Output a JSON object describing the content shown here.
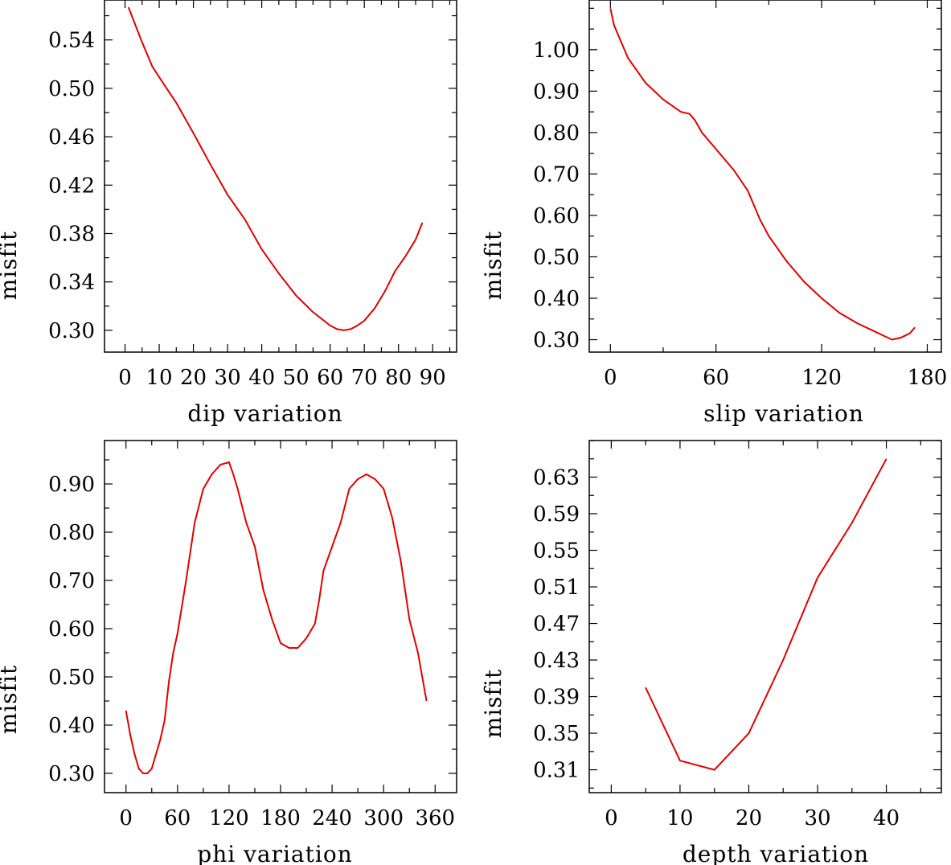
{
  "chart_data": [
    {
      "type": "line",
      "xlabel": "dip    variation",
      "ylabel": "misfit",
      "xlim": [
        -6,
        97
      ],
      "ylim": [
        0.282,
        0.573
      ],
      "xticks": [
        0,
        10,
        20,
        30,
        40,
        50,
        60,
        70,
        80,
        90
      ],
      "yticks": [
        0.3,
        0.34,
        0.38,
        0.42,
        0.46,
        0.5,
        0.54
      ],
      "xtick_labels": [
        "0",
        "10",
        "20",
        "30",
        "40",
        "50",
        "60",
        "70",
        "80",
        "90"
      ],
      "ytick_labels": [
        "0.30",
        "0.34",
        "0.38",
        "0.42",
        "0.46",
        "0.50",
        "0.54"
      ],
      "grid": false,
      "color": "#e00000",
      "x": [
        1,
        5,
        8,
        11,
        15,
        20,
        25,
        30,
        35,
        40,
        45,
        50,
        55,
        60,
        62,
        64,
        66,
        68,
        70,
        73,
        76,
        79,
        82,
        85,
        87
      ],
      "y": [
        0.567,
        0.538,
        0.518,
        0.505,
        0.488,
        0.463,
        0.437,
        0.412,
        0.392,
        0.367,
        0.347,
        0.329,
        0.315,
        0.304,
        0.301,
        0.3,
        0.301,
        0.304,
        0.308,
        0.318,
        0.332,
        0.349,
        0.361,
        0.375,
        0.389
      ]
    },
    {
      "type": "line",
      "xlabel": "slip   variation",
      "ylabel": "misfit",
      "xlim": [
        -12,
        188
      ],
      "ylim": [
        0.27,
        1.12
      ],
      "xticks": [
        0,
        60,
        120,
        180
      ],
      "yticks": [
        0.3,
        0.4,
        0.5,
        0.6,
        0.7,
        0.8,
        0.9,
        1.0
      ],
      "xtick_labels": [
        "0",
        "60",
        "120",
        "180"
      ],
      "ytick_labels": [
        "0.30",
        "0.40",
        "0.50",
        "0.60",
        "0.70",
        "0.80",
        "0.90",
        "1.00"
      ],
      "grid": false,
      "color": "#e00000",
      "x": [
        0,
        2,
        5,
        10,
        15,
        20,
        30,
        40,
        45,
        48,
        52,
        60,
        70,
        78,
        85,
        90,
        100,
        110,
        120,
        130,
        140,
        150,
        155,
        160,
        165,
        170,
        173
      ],
      "y": [
        1.1,
        1.06,
        1.03,
        0.98,
        0.95,
        0.92,
        0.88,
        0.85,
        0.845,
        0.83,
        0.8,
        0.76,
        0.71,
        0.66,
        0.59,
        0.55,
        0.49,
        0.44,
        0.4,
        0.365,
        0.34,
        0.32,
        0.31,
        0.3,
        0.305,
        0.315,
        0.33
      ]
    },
    {
      "type": "line",
      "xlabel": "phi    variation",
      "ylabel": "misfit",
      "xlim": [
        -25,
        385
      ],
      "ylim": [
        0.26,
        0.99
      ],
      "xticks": [
        0,
        60,
        120,
        180,
        240,
        300,
        360
      ],
      "yticks": [
        0.3,
        0.4,
        0.5,
        0.6,
        0.7,
        0.8,
        0.9
      ],
      "xtick_labels": [
        "0",
        "60",
        "120",
        "180",
        "240",
        "300",
        "360"
      ],
      "ytick_labels": [
        "0.30",
        "0.40",
        "0.50",
        "0.60",
        "0.70",
        "0.80",
        "0.90"
      ],
      "grid": false,
      "color": "#e00000",
      "x": [
        0,
        5,
        10,
        15,
        20,
        25,
        30,
        35,
        40,
        45,
        50,
        55,
        60,
        70,
        80,
        90,
        100,
        110,
        120,
        125,
        130,
        140,
        150,
        160,
        170,
        180,
        190,
        200,
        210,
        220,
        225,
        230,
        240,
        250,
        260,
        270,
        280,
        290,
        300,
        310,
        320,
        330,
        340,
        350
      ],
      "y": [
        0.43,
        0.38,
        0.34,
        0.31,
        0.3,
        0.3,
        0.31,
        0.34,
        0.37,
        0.41,
        0.49,
        0.55,
        0.59,
        0.7,
        0.82,
        0.89,
        0.92,
        0.94,
        0.945,
        0.92,
        0.89,
        0.82,
        0.77,
        0.68,
        0.62,
        0.57,
        0.56,
        0.56,
        0.58,
        0.61,
        0.66,
        0.72,
        0.77,
        0.82,
        0.89,
        0.91,
        0.92,
        0.91,
        0.89,
        0.83,
        0.74,
        0.62,
        0.55,
        0.45
      ]
    },
    {
      "type": "line",
      "xlabel": "depth  variation",
      "ylabel": "misfit",
      "xlim": [
        -3.2,
        48
      ],
      "ylim": [
        0.285,
        0.67
      ],
      "xticks": [
        0,
        10,
        20,
        30,
        40
      ],
      "yticks": [
        0.31,
        0.35,
        0.39,
        0.43,
        0.47,
        0.51,
        0.55,
        0.59,
        0.63
      ],
      "xtick_labels": [
        "0",
        "10",
        "20",
        "30",
        "40"
      ],
      "ytick_labels": [
        "0.31",
        "0.35",
        "0.39",
        "0.43",
        "0.47",
        "0.51",
        "0.55",
        "0.59",
        "0.63"
      ],
      "grid": false,
      "color": "#e00000",
      "x": [
        5,
        10,
        15,
        20,
        25,
        30,
        35,
        40
      ],
      "y": [
        0.4,
        0.32,
        0.31,
        0.35,
        0.43,
        0.52,
        0.58,
        0.65
      ]
    }
  ]
}
